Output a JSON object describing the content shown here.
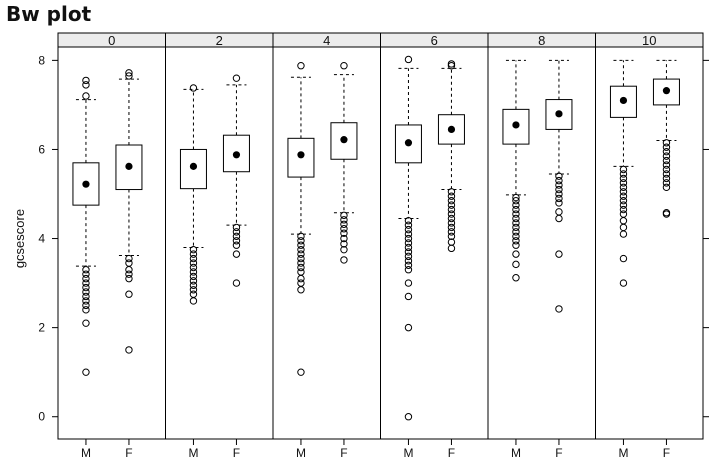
{
  "page": {
    "title": "Bw plot"
  },
  "chart_data": {
    "type": "boxplot",
    "title": "Bw plot",
    "ylabel": "gcsescore",
    "xlabel": "",
    "ylim": [
      -0.5,
      8.3
    ],
    "yticks": [
      0,
      2,
      4,
      6,
      8
    ],
    "groups": [
      "M",
      "F"
    ],
    "panels": [
      {
        "label": "0",
        "boxes": [
          {
            "group": "M",
            "whisker_low": 3.38,
            "q1": 4.75,
            "median": 5.22,
            "q3": 5.7,
            "whisker_high": 7.12,
            "outliers_low": [
              3.3,
              3.2,
              3.1,
              3.0,
              2.9,
              2.8,
              2.7,
              2.6,
              2.5,
              2.4,
              2.1,
              1.0
            ],
            "outliers_high": [
              7.2,
              7.45,
              7.55
            ]
          },
          {
            "group": "F",
            "whisker_low": 3.62,
            "q1": 5.1,
            "median": 5.62,
            "q3": 6.1,
            "whisker_high": 7.58,
            "outliers_low": [
              3.55,
              3.45,
              3.3,
              3.2,
              3.1,
              2.75,
              1.5
            ],
            "outliers_high": [
              7.65,
              7.72
            ]
          }
        ]
      },
      {
        "label": "2",
        "boxes": [
          {
            "group": "M",
            "whisker_low": 3.8,
            "q1": 5.12,
            "median": 5.62,
            "q3": 6.0,
            "whisker_high": 7.35,
            "outliers_low": [
              3.75,
              3.65,
              3.55,
              3.45,
              3.35,
              3.25,
              3.15,
              3.05,
              2.95,
              2.85,
              2.75,
              2.6
            ],
            "outliers_high": [
              7.38
            ]
          },
          {
            "group": "F",
            "whisker_low": 4.3,
            "q1": 5.5,
            "median": 5.88,
            "q3": 6.32,
            "whisker_high": 7.45,
            "outliers_low": [
              4.25,
              4.15,
              4.05,
              3.95,
              3.85,
              3.65,
              3.0
            ],
            "outliers_high": [
              7.6
            ]
          }
        ]
      },
      {
        "label": "4",
        "boxes": [
          {
            "group": "M",
            "whisker_low": 4.1,
            "q1": 5.38,
            "median": 5.88,
            "q3": 6.25,
            "whisker_high": 7.62,
            "outliers_low": [
              4.05,
              3.95,
              3.85,
              3.75,
              3.65,
              3.55,
              3.45,
              3.35,
              3.25,
              3.1,
              3.0,
              2.85,
              1.0
            ],
            "outliers_high": [
              7.88
            ]
          },
          {
            "group": "F",
            "whisker_low": 4.58,
            "q1": 5.78,
            "median": 6.22,
            "q3": 6.6,
            "whisker_high": 7.68,
            "outliers_low": [
              4.52,
              4.42,
              4.32,
              4.22,
              4.12,
              4.0,
              3.88,
              3.75,
              3.52
            ],
            "outliers_high": [
              7.88
            ]
          }
        ]
      },
      {
        "label": "6",
        "boxes": [
          {
            "group": "M",
            "whisker_low": 4.45,
            "q1": 5.7,
            "median": 6.15,
            "q3": 6.55,
            "whisker_high": 7.82,
            "outliers_low": [
              4.4,
              4.3,
              4.2,
              4.1,
              4.0,
              3.9,
              3.8,
              3.7,
              3.6,
              3.5,
              3.4,
              3.3,
              3.0,
              2.7,
              2.0,
              0.0
            ],
            "outliers_high": [
              8.02
            ]
          },
          {
            "group": "F",
            "whisker_low": 5.1,
            "q1": 6.12,
            "median": 6.45,
            "q3": 6.78,
            "whisker_high": 7.82,
            "outliers_low": [
              5.05,
              4.95,
              4.85,
              4.75,
              4.65,
              4.55,
              4.45,
              4.35,
              4.25,
              4.15,
              4.05,
              3.92,
              3.78
            ],
            "outliers_high": [
              7.88,
              7.92
            ]
          }
        ]
      },
      {
        "label": "8",
        "boxes": [
          {
            "group": "M",
            "whisker_low": 4.98,
            "q1": 6.12,
            "median": 6.55,
            "q3": 6.9,
            "whisker_high": 8.0,
            "outliers_low": [
              4.92,
              4.85,
              4.75,
              4.65,
              4.55,
              4.45,
              4.35,
              4.25,
              4.15,
              4.05,
              3.95,
              3.85,
              3.65,
              3.42,
              3.12
            ],
            "outliers_high": []
          },
          {
            "group": "F",
            "whisker_low": 5.45,
            "q1": 6.45,
            "median": 6.8,
            "q3": 7.12,
            "whisker_high": 8.0,
            "outliers_low": [
              5.4,
              5.3,
              5.2,
              5.1,
              5.0,
              4.9,
              4.8,
              4.6,
              4.45,
              3.65,
              2.42
            ],
            "outliers_high": []
          }
        ]
      },
      {
        "label": "10",
        "boxes": [
          {
            "group": "M",
            "whisker_low": 5.62,
            "q1": 6.72,
            "median": 7.1,
            "q3": 7.42,
            "whisker_high": 8.0,
            "outliers_low": [
              5.55,
              5.45,
              5.35,
              5.25,
              5.15,
              5.05,
              4.95,
              4.85,
              4.75,
              4.65,
              4.55,
              4.4,
              4.25,
              4.1,
              3.55,
              3.0
            ],
            "outliers_high": []
          },
          {
            "group": "F",
            "whisker_low": 6.2,
            "q1": 7.0,
            "median": 7.32,
            "q3": 7.58,
            "whisker_high": 8.0,
            "outliers_low": [
              6.15,
              6.05,
              5.95,
              5.85,
              5.75,
              5.65,
              5.55,
              5.45,
              5.35,
              5.25,
              5.15,
              4.58,
              4.55
            ],
            "outliers_high": []
          }
        ]
      }
    ]
  }
}
